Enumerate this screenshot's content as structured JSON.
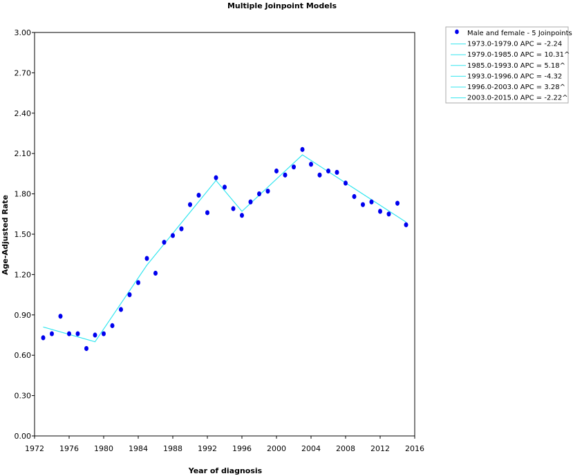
{
  "chart_data": {
    "type": "line",
    "title": "Multiple Joinpoint Models",
    "xlabel": "Year of diagnosis",
    "ylabel": "Age-Adjusted Rate",
    "xlim": [
      1972,
      2016
    ],
    "ylim": [
      0,
      3.0
    ],
    "x_ticks": [
      "1972",
      "1976",
      "1980",
      "1984",
      "1988",
      "1992",
      "1996",
      "2000",
      "2004",
      "2008",
      "2012",
      "2016"
    ],
    "y_ticks": [
      "0.00",
      "0.30",
      "0.60",
      "0.90",
      "1.20",
      "1.50",
      "1.80",
      "2.10",
      "2.40",
      "2.70",
      "3.00"
    ],
    "grid": false,
    "legend_position": "top-right, outside plot",
    "colors": {
      "points": "#0000ee",
      "fit_line": "#33e6ef"
    },
    "legend": [
      "Male and female - 5 Joinpoints",
      "1973.0-1979.0 APC  = -2.24",
      "1979.0-1985.0 APC  = 10.31^",
      "1985.0-1993.0 APC  =  5.18^",
      "1993.0-1996.0 APC  = -4.32",
      "1996.0-2003.0 APC  =  3.28^",
      "2003.0-2015.0 APC  = -2.22^"
    ],
    "observed": {
      "x": [
        1973,
        1974,
        1975,
        1976,
        1977,
        1978,
        1979,
        1980,
        1981,
        1982,
        1983,
        1984,
        1985,
        1986,
        1987,
        1988,
        1989,
        1990,
        1991,
        1992,
        1993,
        1994,
        1995,
        1996,
        1997,
        1998,
        1999,
        2000,
        2001,
        2002,
        2003,
        2004,
        2005,
        2006,
        2007,
        2008,
        2009,
        2010,
        2011,
        2012,
        2013,
        2014,
        2015
      ],
      "y": [
        0.73,
        0.76,
        0.89,
        0.76,
        0.76,
        0.65,
        0.75,
        0.76,
        0.82,
        0.94,
        1.05,
        1.14,
        1.32,
        1.21,
        1.44,
        1.49,
        1.54,
        1.72,
        1.79,
        1.66,
        1.92,
        1.85,
        1.69,
        1.64,
        1.74,
        1.8,
        1.82,
        1.97,
        1.94,
        2.0,
        2.13,
        2.02,
        1.94,
        1.97,
        1.96,
        1.88,
        1.78,
        1.72,
        1.74,
        1.67,
        1.65,
        1.73,
        1.57
      ]
    },
    "fitted": {
      "x": [
        1973,
        1979,
        1985,
        1993,
        1996,
        2003,
        2015
      ],
      "y": [
        0.81,
        0.7,
        1.27,
        1.9,
        1.67,
        2.09,
        1.59
      ]
    }
  }
}
